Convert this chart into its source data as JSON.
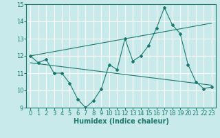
{
  "title": "",
  "xlabel": "Humidex (Indice chaleur)",
  "ylabel": "",
  "xlim": [
    -0.5,
    23.5
  ],
  "ylim": [
    9,
    15
  ],
  "yticks": [
    9,
    10,
    11,
    12,
    13,
    14,
    15
  ],
  "xticks": [
    0,
    1,
    2,
    3,
    4,
    5,
    6,
    7,
    8,
    9,
    10,
    11,
    12,
    13,
    14,
    15,
    16,
    17,
    18,
    19,
    20,
    21,
    22,
    23
  ],
  "background_color": "#c8eaea",
  "grid_color": "#ffffff",
  "line_color": "#1a7a6e",
  "curve1_x": [
    0,
    1,
    2,
    3,
    4,
    5,
    6,
    7,
    8,
    9,
    10,
    11,
    12,
    13,
    14,
    15,
    16,
    17,
    18,
    19,
    20,
    21,
    22,
    23
  ],
  "curve1_y": [
    12.0,
    11.6,
    11.8,
    11.0,
    11.0,
    10.4,
    9.5,
    9.0,
    9.4,
    10.1,
    11.5,
    11.2,
    13.0,
    11.7,
    12.0,
    12.6,
    13.6,
    14.8,
    13.8,
    13.3,
    11.5,
    10.5,
    10.1,
    10.2
  ],
  "curve2_x": [
    0,
    23
  ],
  "curve2_y": [
    12.0,
    13.9
  ],
  "curve3_x": [
    0,
    23
  ],
  "curve3_y": [
    11.6,
    10.3
  ],
  "fontsize_xlabel": 7,
  "fontsize_ticks": 6
}
